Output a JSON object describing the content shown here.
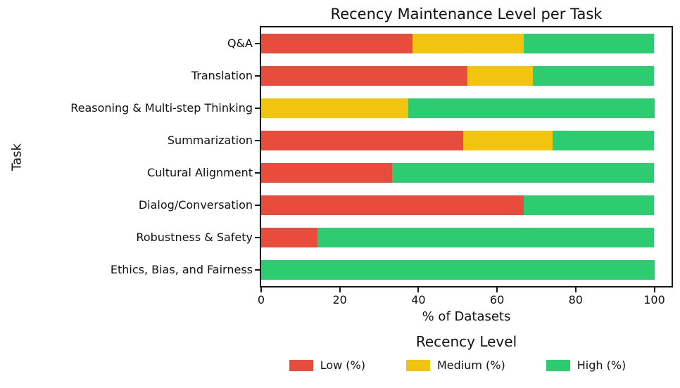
{
  "chart": {
    "title": "Recency Maintenance Level per Task",
    "xlabel": "% of Datasets",
    "ylabel": "Task",
    "legend_title": "Recency Level",
    "axis_color": "#151515",
    "x_ticks": [
      0,
      20,
      40,
      60,
      80,
      100
    ]
  },
  "chart_data": {
    "type": "bar",
    "orientation": "horizontal",
    "stacked": true,
    "title": "Recency Maintenance Level per Task",
    "xlabel": "% of Datasets",
    "ylabel": "Task",
    "xlim": [
      0,
      100
    ],
    "x_ticks": [
      0,
      20,
      40,
      60,
      80,
      100
    ],
    "grid": false,
    "legend_title": "Recency Level",
    "legend_position": "bottom-center",
    "categories": [
      "Q&A",
      "Translation",
      "Reasoning & Multi-step Thinking",
      "Summarization",
      "Cultural Alignment",
      "Dialog/Conversation",
      "Robustness & Safety",
      "Ethics, Bias, and Fairness"
    ],
    "series": [
      {
        "name": "Low (%)",
        "color": "#e74c3c",
        "values": [
          38.5,
          52.4,
          0,
          51.3,
          33.3,
          66.7,
          14.3,
          0
        ]
      },
      {
        "name": "Medium (%)",
        "color": "#f1c40f",
        "values": [
          28.2,
          16.7,
          37.5,
          22.8,
          0,
          0,
          0,
          0
        ]
      },
      {
        "name": "High (%)",
        "color": "#2ecc71",
        "values": [
          33.3,
          30.9,
          62.5,
          25.9,
          66.7,
          33.3,
          85.7,
          100
        ]
      }
    ]
  }
}
